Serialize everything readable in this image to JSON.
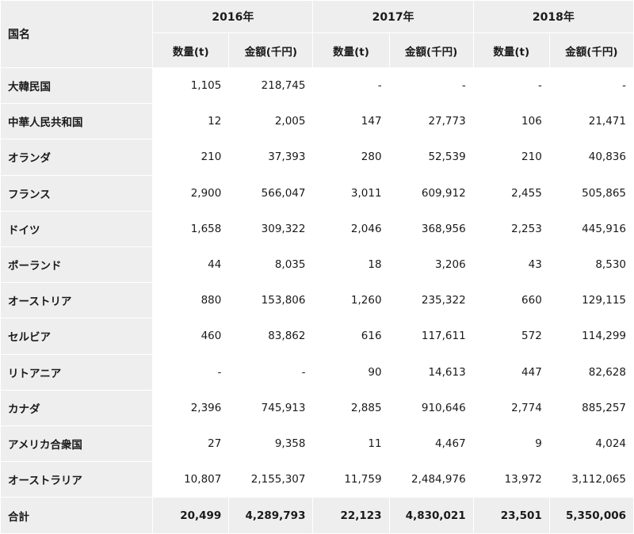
{
  "header": {
    "country": "国名",
    "years": [
      "2016年",
      "2017年",
      "2018年"
    ],
    "qty_label": "数量(t)",
    "amt_label": "金額(千円)"
  },
  "rows": [
    {
      "name": "大韓民国",
      "v": [
        "1,105",
        "218,745",
        "-",
        "-",
        "-",
        "-"
      ]
    },
    {
      "name": "中華人民共和国",
      "v": [
        "12",
        "2,005",
        "147",
        "27,773",
        "106",
        "21,471"
      ]
    },
    {
      "name": "オランダ",
      "v": [
        "210",
        "37,393",
        "280",
        "52,539",
        "210",
        "40,836"
      ]
    },
    {
      "name": "フランス",
      "v": [
        "2,900",
        "566,047",
        "3,011",
        "609,912",
        "2,455",
        "505,865"
      ]
    },
    {
      "name": "ドイツ",
      "v": [
        "1,658",
        "309,322",
        "2,046",
        "368,956",
        "2,253",
        "445,916"
      ]
    },
    {
      "name": "ポーランド",
      "v": [
        "44",
        "8,035",
        "18",
        "3,206",
        "43",
        "8,530"
      ]
    },
    {
      "name": "オーストリア",
      "v": [
        "880",
        "153,806",
        "1,260",
        "235,322",
        "660",
        "129,115"
      ]
    },
    {
      "name": "セルビア",
      "v": [
        "460",
        "83,862",
        "616",
        "117,611",
        "572",
        "114,299"
      ]
    },
    {
      "name": "リトアニア",
      "v": [
        "-",
        "-",
        "90",
        "14,613",
        "447",
        "82,628"
      ]
    },
    {
      "name": "カナダ",
      "v": [
        "2,396",
        "745,913",
        "2,885",
        "910,646",
        "2,774",
        "885,257"
      ]
    },
    {
      "name": "アメリカ合衆国",
      "v": [
        "27",
        "9,358",
        "11",
        "4,467",
        "9",
        "4,024"
      ]
    },
    {
      "name": "オーストラリア",
      "v": [
        "10,807",
        "2,155,307",
        "11,759",
        "2,484,976",
        "13,972",
        "3,112,065"
      ]
    }
  ],
  "total": {
    "name": "合計",
    "v": [
      "20,499",
      "4,289,793",
      "22,123",
      "4,830,021",
      "23,501",
      "5,350,006"
    ]
  }
}
